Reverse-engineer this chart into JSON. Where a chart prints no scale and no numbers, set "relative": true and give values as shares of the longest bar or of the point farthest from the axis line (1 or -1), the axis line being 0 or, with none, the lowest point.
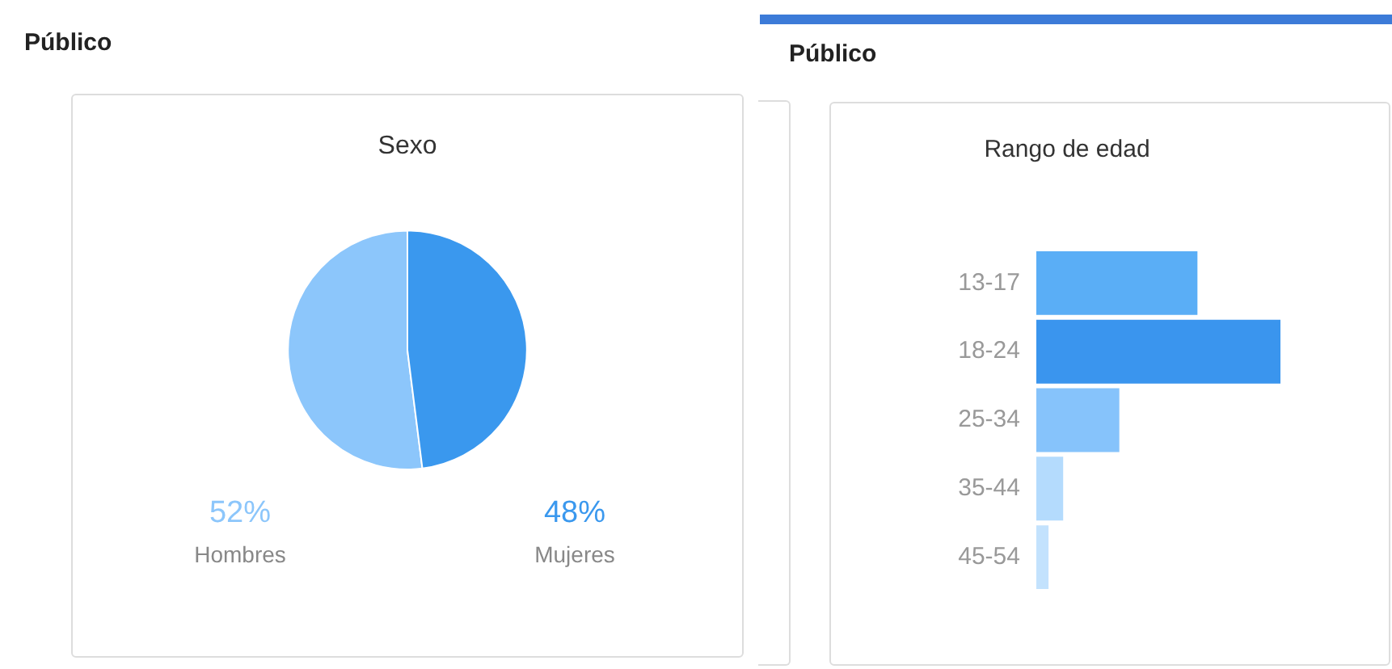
{
  "chart_data": [
    {
      "type": "pie",
      "title": "Sexo",
      "annotations": [
        "Público"
      ],
      "categories": [
        "Hombres",
        "Mujeres"
      ],
      "values": [
        52,
        48
      ],
      "value_labels": [
        "52%",
        "48%"
      ],
      "colors": [
        "#8cc6fb",
        "#3a98ee"
      ],
      "legend": false
    },
    {
      "type": "bar",
      "orientation": "horizontal",
      "relative": true,
      "title": "Rango de edad",
      "annotations": [
        "Público"
      ],
      "categories": [
        "13-17",
        "18-24",
        "25-34",
        "35-44",
        "45-54"
      ],
      "values": [
        0.66,
        1,
        0.34,
        0.11,
        0.05
      ],
      "colors": [
        "#5aaef6",
        "#3a95ee",
        "#86c3fb",
        "#b4dbfd",
        "#c3e2fd"
      ],
      "legend": false
    }
  ]
}
